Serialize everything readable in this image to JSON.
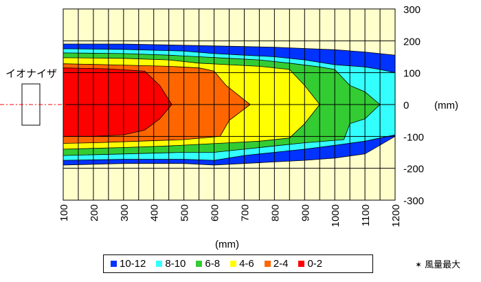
{
  "chart_data": {
    "type": "heatmap",
    "subtype": "filled-contour",
    "title": "",
    "xlabel": "(mm)",
    "ylabel": "(mm)",
    "xlim": [
      100,
      1200
    ],
    "ylim": [
      -300,
      300
    ],
    "x_ticks": [
      "100",
      "200",
      "300",
      "400",
      "500",
      "600",
      "700",
      "800",
      "900",
      "1000",
      "1100",
      "1200"
    ],
    "y_ticks": [
      "300",
      "200",
      "100",
      "0",
      "-100",
      "-200",
      "-300"
    ],
    "grid": true,
    "legend_position": "bottom",
    "source_label": "イオナイザ",
    "note": "風量最大",
    "background_color": "#ffffcc",
    "bands": [
      {
        "name": "10-12",
        "color": "#0033ff",
        "boundary": [
          [
            100,
            190
          ],
          [
            300,
            190
          ],
          [
            550,
            185
          ],
          [
            700,
            182
          ],
          [
            800,
            180
          ],
          [
            900,
            176
          ],
          [
            1000,
            172
          ],
          [
            1100,
            165
          ],
          [
            1200,
            155
          ],
          [
            1200,
            -100
          ],
          [
            1100,
            -155
          ],
          [
            1000,
            -168
          ],
          [
            900,
            -175
          ],
          [
            800,
            -180
          ],
          [
            700,
            -185
          ],
          [
            600,
            -190
          ],
          [
            500,
            -185
          ],
          [
            300,
            -185
          ],
          [
            100,
            -190
          ]
        ]
      },
      {
        "name": "8-10",
        "color": "#33ffff",
        "boundary": [
          [
            100,
            175
          ],
          [
            300,
            173
          ],
          [
            500,
            168
          ],
          [
            600,
            160
          ],
          [
            700,
            155
          ],
          [
            800,
            150
          ],
          [
            900,
            140
          ],
          [
            1000,
            125
          ],
          [
            1100,
            118
          ],
          [
            1150,
            110
          ],
          [
            1200,
            100
          ],
          [
            1200,
            -95
          ],
          [
            1150,
            -105
          ],
          [
            1100,
            -115
          ],
          [
            1000,
            -128
          ],
          [
            900,
            -140
          ],
          [
            800,
            -150
          ],
          [
            700,
            -160
          ],
          [
            600,
            -175
          ],
          [
            500,
            -172
          ],
          [
            300,
            -172
          ],
          [
            100,
            -175
          ]
        ]
      },
      {
        "name": "6-8",
        "color": "#33cc33",
        "boundary": [
          [
            100,
            162
          ],
          [
            300,
            160
          ],
          [
            450,
            155
          ],
          [
            550,
            150
          ],
          [
            650,
            145
          ],
          [
            750,
            140
          ],
          [
            850,
            130
          ],
          [
            950,
            118
          ],
          [
            1000,
            110
          ],
          [
            1050,
            60
          ],
          [
            1100,
            40
          ],
          [
            1150,
            0
          ],
          [
            1100,
            -45
          ],
          [
            1050,
            -60
          ],
          [
            1030,
            -110
          ],
          [
            900,
            -120
          ],
          [
            800,
            -130
          ],
          [
            700,
            -140
          ],
          [
            600,
            -150
          ],
          [
            500,
            -150
          ],
          [
            300,
            -155
          ],
          [
            100,
            -160
          ]
        ]
      },
      {
        "name": "4-6",
        "color": "#ffff00",
        "boundary": [
          [
            100,
            147
          ],
          [
            300,
            145
          ],
          [
            450,
            140
          ],
          [
            550,
            130
          ],
          [
            650,
            125
          ],
          [
            750,
            120
          ],
          [
            850,
            110
          ],
          [
            900,
            60
          ],
          [
            950,
            0
          ],
          [
            900,
            -60
          ],
          [
            850,
            -105
          ],
          [
            750,
            -115
          ],
          [
            650,
            -120
          ],
          [
            550,
            -125
          ],
          [
            450,
            -130
          ],
          [
            300,
            -135
          ],
          [
            100,
            -140
          ]
        ]
      },
      {
        "name": "2-4",
        "color": "#ff6600",
        "boundary": [
          [
            100,
            128
          ],
          [
            250,
            125
          ],
          [
            450,
            120
          ],
          [
            550,
            115
          ],
          [
            600,
            105
          ],
          [
            640,
            60
          ],
          [
            720,
            0
          ],
          [
            650,
            -50
          ],
          [
            620,
            -100
          ],
          [
            500,
            -110
          ],
          [
            350,
            -115
          ],
          [
            200,
            -120
          ],
          [
            100,
            -122
          ]
        ]
      },
      {
        "name": "0-2",
        "color": "#ff0000",
        "boundary": [
          [
            100,
            115
          ],
          [
            250,
            112
          ],
          [
            370,
            105
          ],
          [
            420,
            60
          ],
          [
            460,
            0
          ],
          [
            420,
            -45
          ],
          [
            370,
            -80
          ],
          [
            300,
            -95
          ],
          [
            200,
            -100
          ],
          [
            100,
            -100
          ]
        ]
      }
    ],
    "legend": [
      {
        "label": "10-12",
        "color": "#0033ff"
      },
      {
        "label": "8-10",
        "color": "#33ffff"
      },
      {
        "label": "6-8",
        "color": "#33cc33"
      },
      {
        "label": "4-6",
        "color": "#ffff00"
      },
      {
        "label": "2-4",
        "color": "#ff6600"
      },
      {
        "label": "0-2",
        "color": "#ff0000"
      }
    ]
  }
}
